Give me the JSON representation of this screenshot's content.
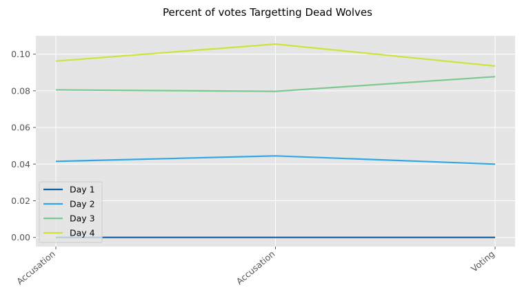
{
  "chart_data": {
    "type": "line",
    "title": "Percent of votes Targetting Dead Wolves",
    "xlabel": "",
    "ylabel": "",
    "categories": [
      "Accusation",
      "Accusation",
      "Voting"
    ],
    "ylim": [
      -0.005,
      0.11
    ],
    "yticks": [
      "0.00",
      "0.02",
      "0.04",
      "0.06",
      "0.08",
      "0.10"
    ],
    "ytick_values": [
      0.0,
      0.02,
      0.04,
      0.06,
      0.08,
      0.1
    ],
    "grid": true,
    "legend_position": "lower-left",
    "series": [
      {
        "name": "Day 1",
        "color": "#0f5c9c",
        "values": [
          0.0,
          0.0,
          0.0
        ]
      },
      {
        "name": "Day 2",
        "color": "#2fa6e8",
        "values": [
          0.0415,
          0.0445,
          0.04
        ]
      },
      {
        "name": "Day 3",
        "color": "#7cc98f",
        "values": [
          0.0805,
          0.0797,
          0.0877
        ]
      },
      {
        "name": "Day 4",
        "color": "#cfe23a",
        "values": [
          0.0962,
          0.1055,
          0.0935
        ]
      }
    ]
  }
}
